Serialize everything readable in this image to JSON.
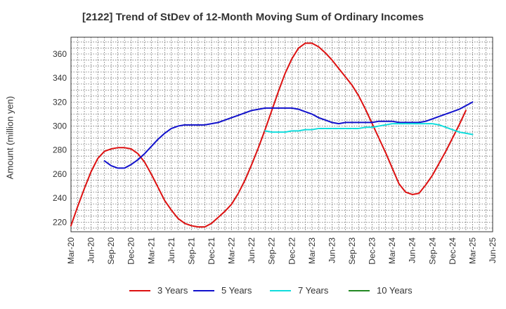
{
  "chart_data": {
    "type": "line",
    "title": "[2122]  Trend of StDev of 12-Month Moving Sum of Ordinary Incomes",
    "ylabel": "Amount (million yen)",
    "xlabel": "",
    "ylim": [
      212,
      374
    ],
    "yticks": [
      220,
      240,
      260,
      280,
      300,
      320,
      340,
      360
    ],
    "x_tick_labels": [
      "Mar-20",
      "Jun-20",
      "Sep-20",
      "Dec-20",
      "Mar-21",
      "Jun-21",
      "Sep-21",
      "Dec-21",
      "Mar-22",
      "Jun-22",
      "Sep-22",
      "Dec-22",
      "Mar-23",
      "Jun-23",
      "Sep-23",
      "Dec-23",
      "Mar-24",
      "Jun-24",
      "Sep-24",
      "Dec-24",
      "Mar-25",
      "Jun-25"
    ],
    "grid": true,
    "legend_position": "bottom",
    "series": [
      {
        "name": "3 Years",
        "color": "#dd1111",
        "points": [
          [
            "Mar-20",
            217
          ],
          [
            "Apr-20",
            233
          ],
          [
            "May-20",
            248
          ],
          [
            "Jun-20",
            262
          ],
          [
            "Jul-20",
            273
          ],
          [
            "Aug-20",
            279
          ],
          [
            "Sep-20",
            281
          ],
          [
            "Oct-20",
            282
          ],
          [
            "Nov-20",
            282
          ],
          [
            "Dec-20",
            281
          ],
          [
            "Jan-21",
            277
          ],
          [
            "Feb-21",
            270
          ],
          [
            "Mar-21",
            260
          ],
          [
            "Apr-21",
            249
          ],
          [
            "May-21",
            238
          ],
          [
            "Jun-21",
            230
          ],
          [
            "Jul-21",
            223
          ],
          [
            "Aug-21",
            219
          ],
          [
            "Sep-21",
            217
          ],
          [
            "Oct-21",
            216
          ],
          [
            "Nov-21",
            216
          ],
          [
            "Dec-21",
            219
          ],
          [
            "Jan-22",
            224
          ],
          [
            "Feb-22",
            229
          ],
          [
            "Mar-22",
            235
          ],
          [
            "Apr-22",
            244
          ],
          [
            "May-22",
            255
          ],
          [
            "Jun-22",
            268
          ],
          [
            "Jul-22",
            282
          ],
          [
            "Aug-22",
            297
          ],
          [
            "Sep-22",
            313
          ],
          [
            "Oct-22",
            329
          ],
          [
            "Nov-22",
            344
          ],
          [
            "Dec-22",
            356
          ],
          [
            "Jan-23",
            365
          ],
          [
            "Feb-23",
            369
          ],
          [
            "Mar-23",
            369
          ],
          [
            "Apr-23",
            366
          ],
          [
            "May-23",
            361
          ],
          [
            "Jun-23",
            355
          ],
          [
            "Jul-23",
            348
          ],
          [
            "Aug-23",
            341
          ],
          [
            "Sep-23",
            334
          ],
          [
            "Oct-23",
            325
          ],
          [
            "Nov-23",
            314
          ],
          [
            "Dec-23",
            302
          ],
          [
            "Jan-24",
            290
          ],
          [
            "Feb-24",
            278
          ],
          [
            "Mar-24",
            265
          ],
          [
            "Apr-24",
            252
          ],
          [
            "May-24",
            245
          ],
          [
            "Jun-24",
            243
          ],
          [
            "Jul-24",
            244
          ],
          [
            "Aug-24",
            251
          ],
          [
            "Sep-24",
            259
          ],
          [
            "Oct-24",
            269
          ],
          [
            "Nov-24",
            279
          ],
          [
            "Dec-24",
            290
          ],
          [
            "Jan-25",
            301
          ],
          [
            "Feb-25",
            313
          ]
        ]
      },
      {
        "name": "5 Years",
        "color": "#1111cc",
        "points": [
          [
            "Aug-20",
            271
          ],
          [
            "Sep-20",
            267
          ],
          [
            "Oct-20",
            265
          ],
          [
            "Nov-20",
            265
          ],
          [
            "Dec-20",
            268
          ],
          [
            "Jan-21",
            272
          ],
          [
            "Feb-21",
            277
          ],
          [
            "Mar-21",
            283
          ],
          [
            "Apr-21",
            289
          ],
          [
            "May-21",
            294
          ],
          [
            "Jun-21",
            298
          ],
          [
            "Jul-21",
            300
          ],
          [
            "Aug-21",
            301
          ],
          [
            "Sep-21",
            301
          ],
          [
            "Oct-21",
            301
          ],
          [
            "Nov-21",
            301
          ],
          [
            "Dec-21",
            302
          ],
          [
            "Jan-22",
            303
          ],
          [
            "Feb-22",
            305
          ],
          [
            "Mar-22",
            307
          ],
          [
            "Apr-22",
            309
          ],
          [
            "May-22",
            311
          ],
          [
            "Jun-22",
            313
          ],
          [
            "Jul-22",
            314
          ],
          [
            "Aug-22",
            315
          ],
          [
            "Sep-22",
            315
          ],
          [
            "Oct-22",
            315
          ],
          [
            "Nov-22",
            315
          ],
          [
            "Dec-22",
            315
          ],
          [
            "Jan-23",
            314
          ],
          [
            "Feb-23",
            312
          ],
          [
            "Mar-23",
            310
          ],
          [
            "Apr-23",
            307
          ],
          [
            "May-23",
            305
          ],
          [
            "Jun-23",
            303
          ],
          [
            "Jul-23",
            302
          ],
          [
            "Aug-23",
            303
          ],
          [
            "Sep-23",
            303
          ],
          [
            "Oct-23",
            303
          ],
          [
            "Nov-23",
            303
          ],
          [
            "Dec-23",
            303
          ],
          [
            "Jan-24",
            304
          ],
          [
            "Feb-24",
            304
          ],
          [
            "Mar-24",
            304
          ],
          [
            "Apr-24",
            303
          ],
          [
            "May-24",
            303
          ],
          [
            "Jun-24",
            303
          ],
          [
            "Jul-24",
            303
          ],
          [
            "Aug-24",
            304
          ],
          [
            "Sep-24",
            306
          ],
          [
            "Oct-24",
            308
          ],
          [
            "Nov-24",
            310
          ],
          [
            "Dec-24",
            312
          ],
          [
            "Jan-25",
            314
          ],
          [
            "Feb-25",
            317
          ],
          [
            "Mar-25",
            320
          ]
        ]
      },
      {
        "name": "7 Years",
        "color": "#11dddd",
        "points": [
          [
            "Aug-22",
            296
          ],
          [
            "Sep-22",
            295
          ],
          [
            "Oct-22",
            295
          ],
          [
            "Nov-22",
            295
          ],
          [
            "Dec-22",
            296
          ],
          [
            "Jan-23",
            296
          ],
          [
            "Feb-23",
            297
          ],
          [
            "Mar-23",
            297
          ],
          [
            "Apr-23",
            298
          ],
          [
            "May-23",
            298
          ],
          [
            "Jun-23",
            298
          ],
          [
            "Jul-23",
            298
          ],
          [
            "Aug-23",
            298
          ],
          [
            "Sep-23",
            298
          ],
          [
            "Oct-23",
            298
          ],
          [
            "Nov-23",
            299
          ],
          [
            "Dec-23",
            299
          ],
          [
            "Jan-24",
            300
          ],
          [
            "Feb-24",
            301
          ],
          [
            "Mar-24",
            302
          ],
          [
            "Apr-24",
            302
          ],
          [
            "May-24",
            302
          ],
          [
            "Jun-24",
            302
          ],
          [
            "Jul-24",
            302
          ],
          [
            "Aug-24",
            302
          ],
          [
            "Sep-24",
            302
          ],
          [
            "Oct-24",
            301
          ],
          [
            "Nov-24",
            299
          ],
          [
            "Dec-24",
            297
          ],
          [
            "Jan-25",
            295
          ],
          [
            "Feb-25",
            294
          ],
          [
            "Mar-25",
            293
          ]
        ]
      },
      {
        "name": "10 Years",
        "color": "#228822",
        "points": []
      }
    ]
  }
}
